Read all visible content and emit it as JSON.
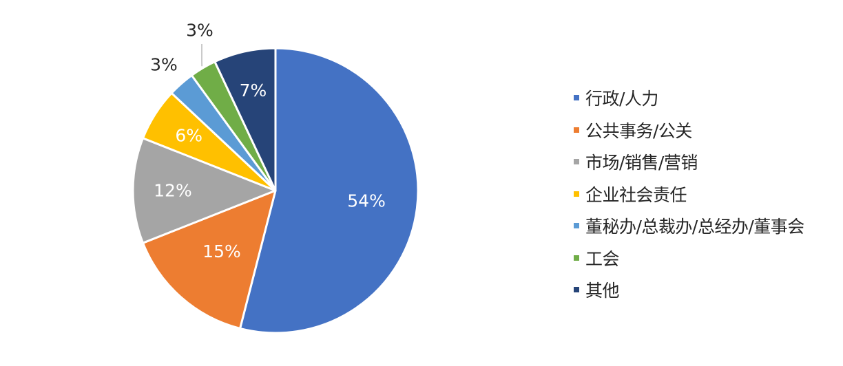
{
  "chart_data": {
    "type": "pie",
    "categories": [
      "行政/人力",
      "公共事务/公关",
      "市场/销售/营销",
      "企业社会责任",
      "董秘办/总裁办/总经办/董事会",
      "工会",
      "其他"
    ],
    "values": [
      54,
      15,
      12,
      6,
      3,
      3,
      7
    ],
    "labels": [
      "54%",
      "15%",
      "12%",
      "6%",
      "3%",
      "3%",
      "7%"
    ],
    "colors": [
      "#4472C4",
      "#ED7D31",
      "#A5A5A5",
      "#FFC000",
      "#5B9BD5",
      "#70AD47",
      "#264478"
    ],
    "legend_position": "right"
  }
}
